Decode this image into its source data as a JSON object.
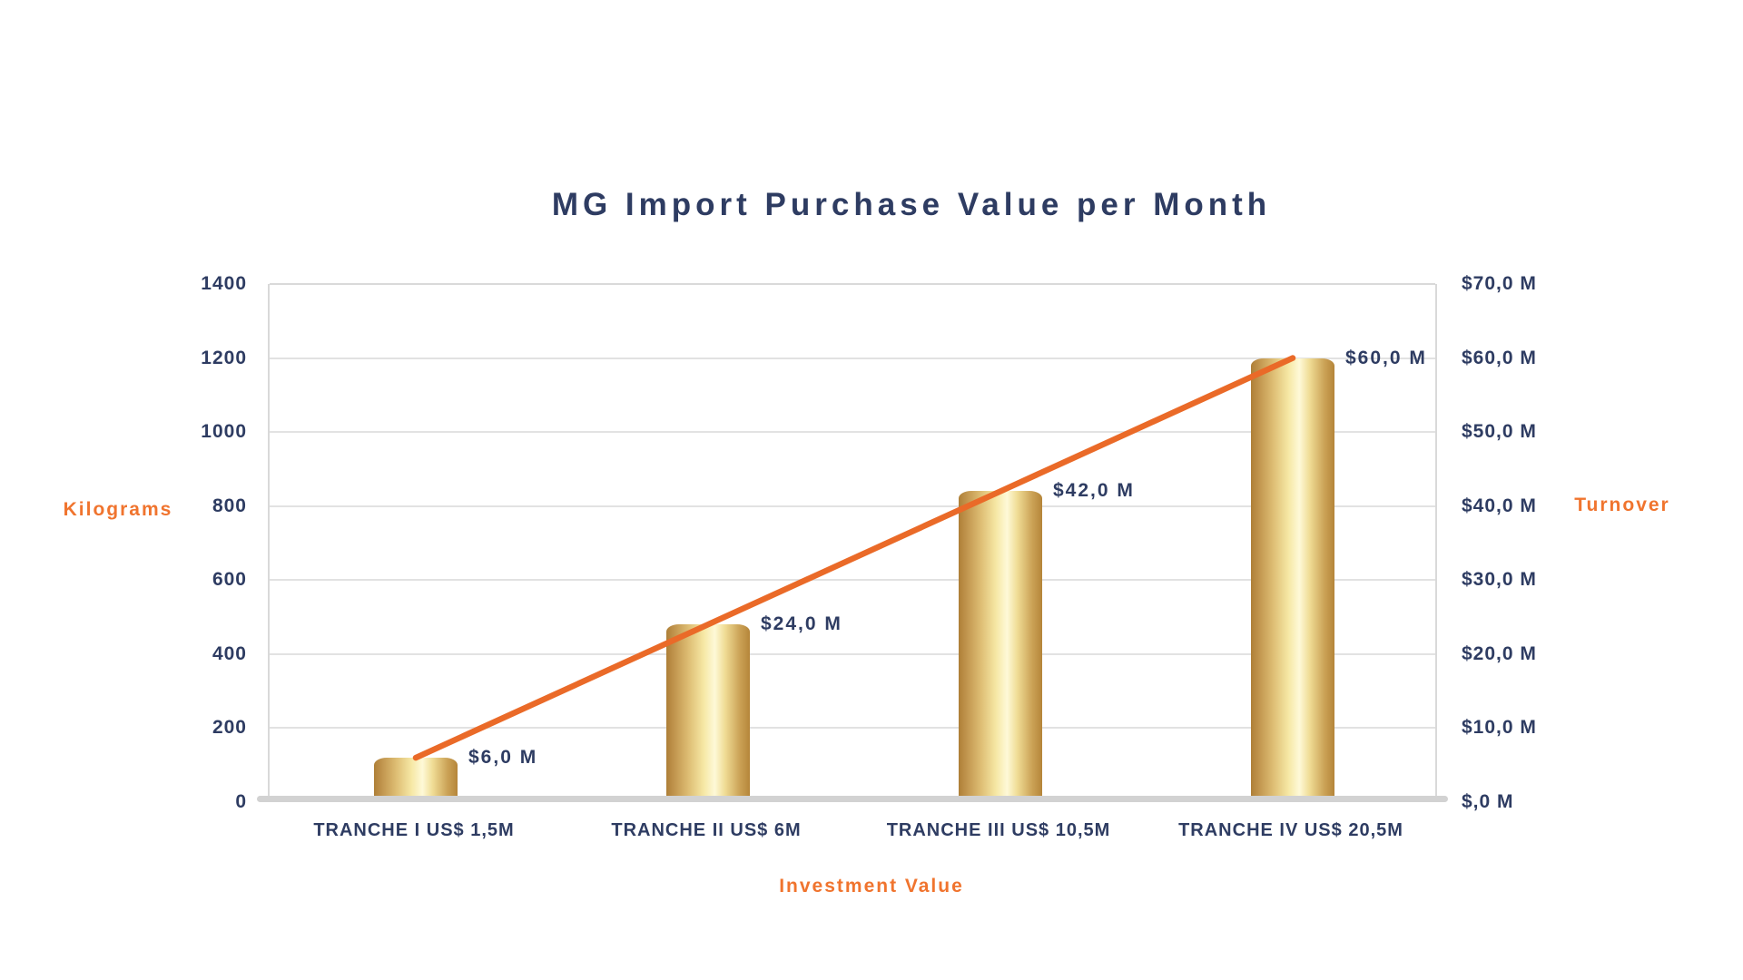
{
  "colors": {
    "navy_text": "#2E3C62",
    "orange_label": "#F0742E",
    "line_orange": "#EA6A28",
    "bar_gold_edge": "#B3853C",
    "bar_gold_highlight": "#FEF9D8",
    "gridline": "#E2E2E2",
    "baseline": "#D2D2D2"
  },
  "chart_data": {
    "type": "bar+line",
    "title": "MG Import Purchase Value per Month",
    "categories": [
      "TRANCHE I US$ 1,5M",
      "TRANCHE II US$ 6M",
      "TRANCHE III US$ 10,5M",
      "TRANCHE IV US$ 20,5M"
    ],
    "series": [
      {
        "name": "Kilograms",
        "type": "bar",
        "axis": "left",
        "values": [
          120,
          480,
          840,
          1200
        ],
        "bar_style": "gold-cylinder"
      },
      {
        "name": "Turnover",
        "type": "line",
        "axis": "right",
        "values": [
          6,
          24,
          42,
          60
        ],
        "point_labels": [
          "$6,0 M",
          "$24,0 M",
          "$42,0 M",
          "$60,0 M"
        ],
        "color": "#EA6A28"
      }
    ],
    "left_axis": {
      "title": "Kilograms",
      "min": 0,
      "max": 1400,
      "step": 200,
      "tick_labels": [
        "1400",
        "1200",
        "1000",
        "800",
        "600",
        "400",
        "200",
        "0"
      ]
    },
    "right_axis": {
      "title": "Turnover",
      "min": 0,
      "max": 70,
      "step": 10,
      "tick_labels": [
        "$70,0 M",
        "$60,0 M",
        "$50,0 M",
        "$40,0 M",
        "$30,0 M",
        "$20,0 M",
        "$10,0 M",
        "$,0 M"
      ]
    },
    "x_axis": {
      "title": "Investment Value"
    },
    "grid": true,
    "legend": "none"
  }
}
